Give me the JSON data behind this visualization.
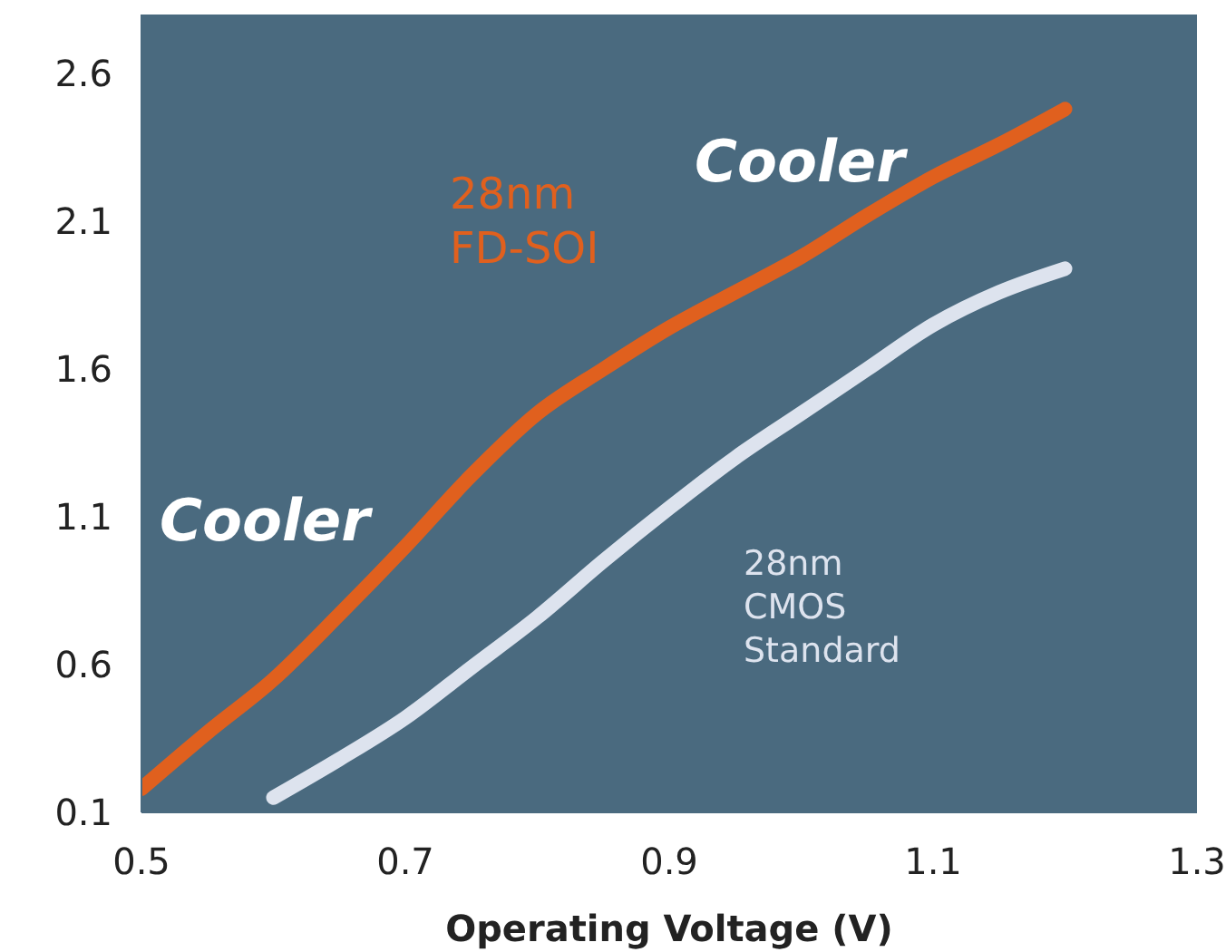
{
  "chart_data": {
    "type": "line",
    "xlabel": "Operating Voltage (V)",
    "xlim": [
      0.5,
      1.3
    ],
    "xticks": [
      0.5,
      0.7,
      0.9,
      1.1,
      1.3
    ],
    "ylim": [
      0.1,
      2.8
    ],
    "yticks": [
      0.1,
      0.6,
      1.1,
      1.6,
      2.1,
      2.6
    ],
    "grid": false,
    "marker": "none",
    "line_style": "solid",
    "annotations": [
      "Cooler",
      "Cooler"
    ],
    "series": [
      {
        "name": "28nm FD-SOI",
        "color": "#e0601e",
        "x": [
          0.5,
          0.55,
          0.6,
          0.65,
          0.7,
          0.75,
          0.8,
          0.85,
          0.9,
          0.95,
          1.0,
          1.05,
          1.1,
          1.15,
          1.2
        ],
        "values": [
          0.18,
          0.37,
          0.55,
          0.77,
          1.0,
          1.24,
          1.45,
          1.6,
          1.74,
          1.86,
          1.98,
          2.12,
          2.25,
          2.36,
          2.48
        ]
      },
      {
        "name": "28nm CMOS Standard",
        "color": "#dde3ee",
        "x": [
          0.6,
          0.65,
          0.7,
          0.75,
          0.8,
          0.85,
          0.9,
          0.95,
          1.0,
          1.05,
          1.1,
          1.15,
          1.2
        ],
        "values": [
          0.15,
          0.28,
          0.42,
          0.59,
          0.76,
          0.95,
          1.13,
          1.3,
          1.45,
          1.6,
          1.75,
          1.86,
          1.94
        ]
      }
    ]
  }
}
